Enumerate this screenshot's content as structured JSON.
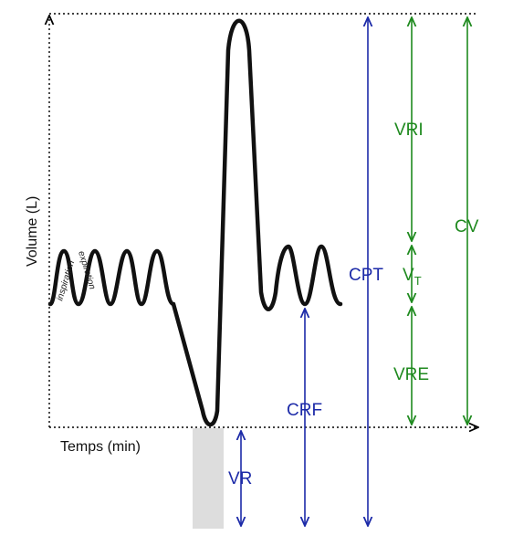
{
  "axes": {
    "y_label": "Volume (L)",
    "x_label": "Temps (min)"
  },
  "trace_labels": {
    "inspiration": "inspiration",
    "expiration": "expiration"
  },
  "volume_labels": {
    "vr": "VR",
    "crf": "CRF",
    "cpt": "CPT",
    "vri": "VRI",
    "vt_main": "V",
    "vt_sub": "T",
    "vre": "VRE",
    "cv": "CV"
  },
  "colors": {
    "blue": "#1c2aa8",
    "green": "#1f8a1f",
    "trace": "#111111",
    "residual_box": "#dddddd"
  }
}
